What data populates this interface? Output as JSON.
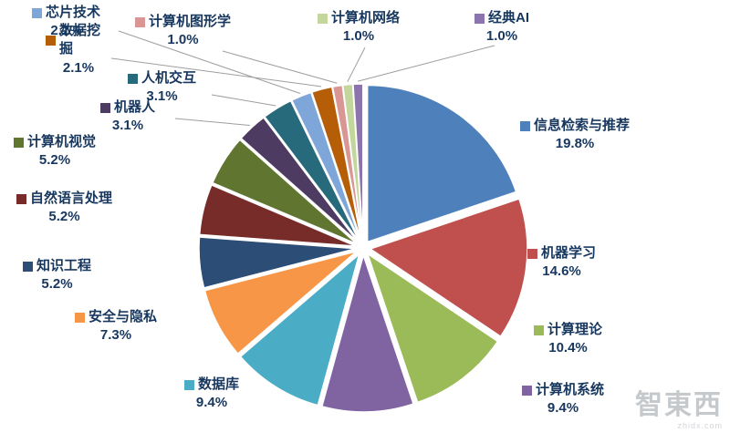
{
  "chart_data": {
    "type": "pie",
    "title": "",
    "exploded": true,
    "start_angle": -90,
    "direction": "clockwise",
    "legend_position": "callout-labels",
    "slices": [
      {
        "label": "信息检索与推荐",
        "value": 19.8,
        "pct": "19.8%",
        "color": "#4E80BC"
      },
      {
        "label": "机器学习",
        "value": 14.6,
        "pct": "14.6%",
        "color": "#C0504D"
      },
      {
        "label": "计算理论",
        "value": 10.4,
        "pct": "10.4%",
        "color": "#9BBB59"
      },
      {
        "label": "计算机系统",
        "value": 9.4,
        "pct": "9.4%",
        "color": "#8064A2"
      },
      {
        "label": "数据库",
        "value": 9.4,
        "pct": "9.4%",
        "color": "#4BACC6"
      },
      {
        "label": "安全与隐私",
        "value": 7.3,
        "pct": "7.3%",
        "color": "#F79646"
      },
      {
        "label": "知识工程",
        "value": 5.2,
        "pct": "5.2%",
        "color": "#2C4D75"
      },
      {
        "label": "自然语言处理",
        "value": 5.2,
        "pct": "5.2%",
        "color": "#772C2A"
      },
      {
        "label": "计算机视觉",
        "value": 5.2,
        "pct": "5.2%",
        "color": "#5F7530"
      },
      {
        "label": "机器人",
        "value": 3.1,
        "pct": "3.1%",
        "color": "#4D3B62"
      },
      {
        "label": "人机交互",
        "value": 3.1,
        "pct": "3.1%",
        "color": "#276A7C"
      },
      {
        "label": "芯片技术",
        "value": 2.1,
        "pct": "2.1%",
        "color": "#7EA6D8"
      },
      {
        "label": "数据挖掘",
        "value": 2.1,
        "pct": "2.1%",
        "color": "#B65D08"
      },
      {
        "label": "计算机图形学",
        "value": 1.0,
        "pct": "1.0%",
        "color": "#D99694"
      },
      {
        "label": "计算机网络",
        "value": 1.0,
        "pct": "1.0%",
        "color": "#C3D69B"
      },
      {
        "label": "经典AI",
        "value": 1.0,
        "pct": "1.0%",
        "color": "#8C74AC"
      }
    ],
    "leader_line_color": "#9e9e9e"
  },
  "watermark": {
    "text": "智東西",
    "sub": "zhidx.com"
  }
}
